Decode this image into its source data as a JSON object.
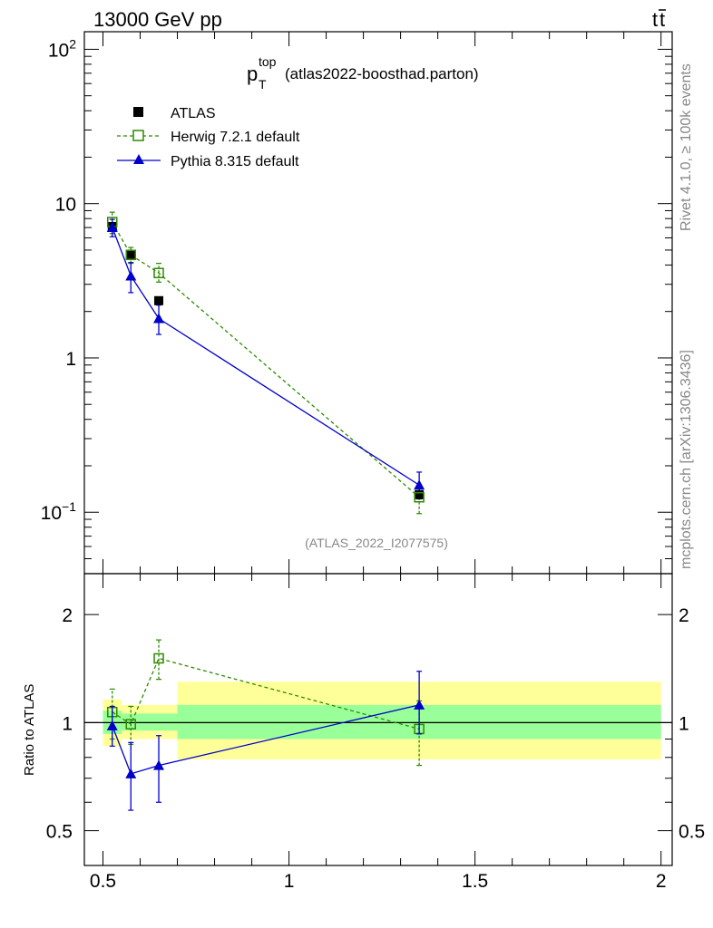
{
  "header": {
    "left": "13000 GeV pp",
    "right_main": "t",
    "right_bar": "t"
  },
  "side": {
    "rivet": "Rivet 4.1.0, ≥ 100k events",
    "mcplots": "mcplots.cern.ch [arXiv:1306.3436]"
  },
  "chart_data": [
    {
      "type": "scatter",
      "title_main": "p",
      "title_sup": "top",
      "title_sub": "T",
      "title_rest": "(atlas2022-boosthad.parton)",
      "watermark": "(ATLAS_2022_I2077575)",
      "yscale": "log",
      "xlim": [
        0.45,
        2.03
      ],
      "ylim": [
        0.04,
        130
      ],
      "yticks": [
        {
          "value": 100,
          "base": "10",
          "exp": "2"
        },
        {
          "value": 10,
          "base": "10",
          "exp": ""
        },
        {
          "value": 1,
          "base": "1",
          "exp": ""
        },
        {
          "value": 0.1,
          "base": "10",
          "exp": "−1"
        }
      ],
      "legend": [
        {
          "name": "ATLAS",
          "color": "#000000",
          "marker": "filled-square",
          "line": "none"
        },
        {
          "name": "Herwig 7.2.1 default",
          "color": "#2f8a00",
          "marker": "open-square",
          "line": "dashed"
        },
        {
          "name": "Pythia 8.315 default",
          "color": "#0000cc",
          "marker": "filled-triangle",
          "line": "solid"
        }
      ],
      "series": [
        {
          "name": "ATLAS",
          "x": [
            0.525,
            0.575,
            0.65,
            1.35
          ],
          "y": [
            7.1,
            4.7,
            2.35,
            0.13
          ]
        },
        {
          "name": "Herwig 7.2.1 default",
          "x": [
            0.525,
            0.575,
            0.65,
            1.35
          ],
          "y": [
            7.6,
            4.65,
            3.55,
            0.125
          ],
          "err_low": [
            6.4,
            4.1,
            3.1,
            0.098
          ],
          "err_high": [
            8.8,
            5.2,
            4.1,
            0.15
          ]
        },
        {
          "name": "Pythia 8.315 default",
          "x": [
            0.525,
            0.575,
            0.65,
            1.35
          ],
          "y": [
            7.0,
            3.4,
            1.8,
            0.15
          ],
          "err_low": [
            6.1,
            2.65,
            1.42,
            0.122
          ],
          "err_high": [
            7.9,
            4.15,
            2.2,
            0.182
          ]
        }
      ]
    },
    {
      "type": "ratio",
      "ylabel": "Ratio to ATLAS",
      "yscale": "log",
      "xlim": [
        0.45,
        2.03
      ],
      "ylim": [
        0.4,
        2.6
      ],
      "yticks": [
        {
          "value": 2,
          "label": "2"
        },
        {
          "value": 1,
          "label": "1"
        },
        {
          "value": 0.5,
          "label": "0.5"
        }
      ],
      "xticks": [
        {
          "value": 0.5,
          "label": "0.5"
        },
        {
          "value": 1,
          "label": "1"
        },
        {
          "value": 1.5,
          "label": "1.5"
        },
        {
          "value": 2,
          "label": "2"
        }
      ],
      "bands": [
        {
          "x0": 0.5,
          "x1": 0.55,
          "inner": [
            0.93,
            1.08
          ],
          "outer": [
            0.86,
            1.16
          ]
        },
        {
          "x0": 0.55,
          "x1": 0.6,
          "inner": [
            0.95,
            1.06
          ],
          "outer": [
            0.9,
            1.12
          ]
        },
        {
          "x0": 0.6,
          "x1": 0.7,
          "inner": [
            0.95,
            1.06
          ],
          "outer": [
            0.9,
            1.12
          ]
        },
        {
          "x0": 0.7,
          "x1": 2.0,
          "inner": [
            0.9,
            1.12
          ],
          "outer": [
            0.79,
            1.3
          ]
        }
      ],
      "series": [
        {
          "name": "Herwig 7.2.1 default",
          "x": [
            0.525,
            0.575,
            0.65,
            1.35
          ],
          "y": [
            1.07,
            0.99,
            1.51,
            0.96
          ],
          "err_low": [
            0.9,
            0.87,
            1.32,
            0.76
          ],
          "err_high": [
            1.24,
            1.11,
            1.7,
            1.15
          ]
        },
        {
          "name": "Pythia 8.315 default",
          "x": [
            0.525,
            0.575,
            0.65,
            1.35
          ],
          "y": [
            0.98,
            0.72,
            0.76,
            1.12
          ],
          "err_low": [
            0.86,
            0.57,
            0.6,
            0.93
          ],
          "err_high": [
            1.11,
            0.88,
            0.92,
            1.39
          ]
        }
      ]
    }
  ]
}
